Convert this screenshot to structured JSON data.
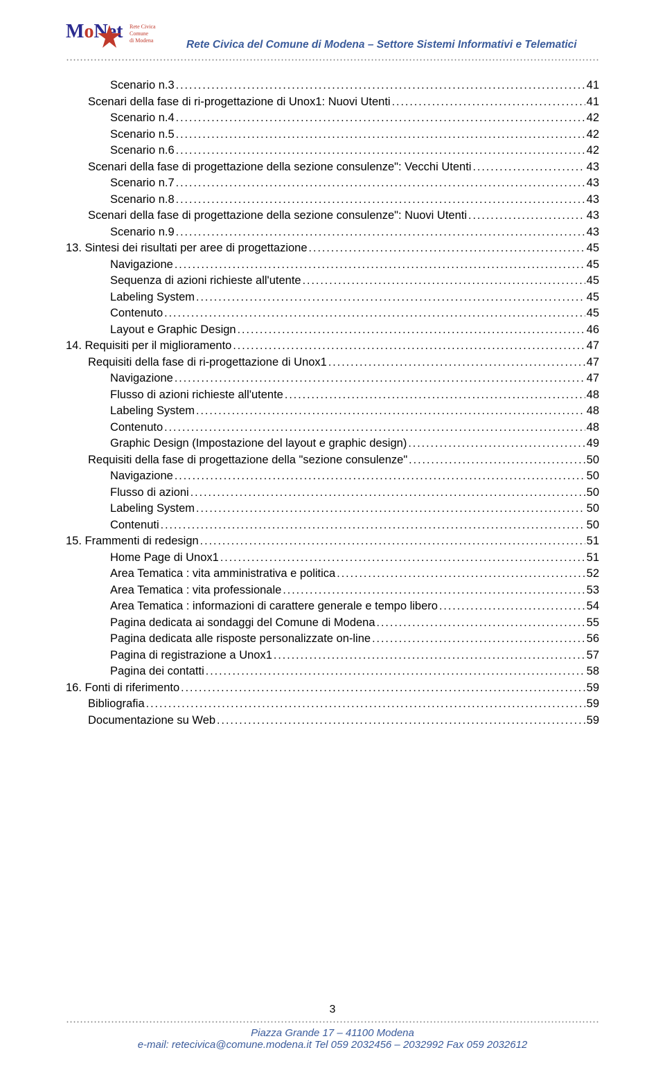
{
  "colors": {
    "brand_blue": "#3a5b9b",
    "logo_navy": "#2b2b8f",
    "logo_red": "#c0392b",
    "text_black": "#000000",
    "background": "#ffffff",
    "leader_dot": "#888888"
  },
  "typography": {
    "body_family": "Arial",
    "body_size_pt": 12,
    "header_size_pt": 11.5,
    "header_weight": "bold",
    "header_style": "italic"
  },
  "header": {
    "logo_text": "MoNet",
    "logo_tagline1": "Rete Civica",
    "logo_tagline2": "Comune",
    "logo_tagline3": "di Modena",
    "title": "Rete Civica del Comune di Modena – Settore Sistemi Informativi e Telematici"
  },
  "toc": [
    {
      "indent": 2,
      "label": "Scenario n.3",
      "page": 41
    },
    {
      "indent": 1,
      "label": "Scenari della fase di ri-progettazione di Unox1: Nuovi Utenti",
      "page": 41
    },
    {
      "indent": 2,
      "label": "Scenario n.4",
      "page": 42
    },
    {
      "indent": 2,
      "label": "Scenario n.5",
      "page": 42
    },
    {
      "indent": 2,
      "label": "Scenario n.6",
      "page": 42
    },
    {
      "indent": 1,
      "label": "Scenari della fase di progettazione della sezione consulenze\": Vecchi Utenti",
      "page": 43
    },
    {
      "indent": 2,
      "label": "Scenario n.7",
      "page": 43
    },
    {
      "indent": 2,
      "label": "Scenario n.8",
      "page": 43
    },
    {
      "indent": 1,
      "label": "Scenari della fase di progettazione della sezione consulenze\": Nuovi Utenti",
      "page": 43
    },
    {
      "indent": 2,
      "label": "Scenario n.9",
      "page": 43
    },
    {
      "indent": 0,
      "label": "13. Sintesi dei risultati per aree di progettazione",
      "page": 45
    },
    {
      "indent": 2,
      "label": "Navigazione",
      "page": 45
    },
    {
      "indent": 2,
      "label": "Sequenza di azioni richieste all'utente",
      "page": 45
    },
    {
      "indent": 2,
      "label": "Labeling System",
      "page": 45
    },
    {
      "indent": 2,
      "label": "Contenuto",
      "page": 45
    },
    {
      "indent": 2,
      "label": "Layout e Graphic Design",
      "page": 46
    },
    {
      "indent": 0,
      "label": "14. Requisiti per il miglioramento",
      "page": 47
    },
    {
      "indent": 1,
      "label": "Requisiti della fase di ri-progettazione di Unox1",
      "page": 47
    },
    {
      "indent": 2,
      "label": "Navigazione",
      "page": 47
    },
    {
      "indent": 2,
      "label": "Flusso di azioni richieste all'utente",
      "page": 48
    },
    {
      "indent": 2,
      "label": "Labeling System",
      "page": 48
    },
    {
      "indent": 2,
      "label": "Contenuto",
      "page": 48
    },
    {
      "indent": 2,
      "label": "Graphic Design (Impostazione del layout e graphic design)",
      "page": 49
    },
    {
      "indent": 1,
      "label": "Requisiti della fase di progettazione della \"sezione consulenze\" ",
      "page": 50
    },
    {
      "indent": 2,
      "label": "Navigazione",
      "page": 50
    },
    {
      "indent": 2,
      "label": "Flusso di azioni",
      "page": 50
    },
    {
      "indent": 2,
      "label": "Labeling System",
      "page": 50
    },
    {
      "indent": 2,
      "label": "Contenuti",
      "page": 50
    },
    {
      "indent": 0,
      "label": "15. Frammenti di redesign",
      "page": 51
    },
    {
      "indent": 2,
      "label": "Home Page di Unox1",
      "page": 51
    },
    {
      "indent": 2,
      "label": "Area Tematica : vita amministrativa e politica",
      "page": 52
    },
    {
      "indent": 2,
      "label": "Area Tematica : vita professionale",
      "page": 53
    },
    {
      "indent": 2,
      "label": "Area Tematica : informazioni di carattere generale e tempo libero",
      "page": 54
    },
    {
      "indent": 2,
      "label": "Pagina dedicata ai sondaggi del Comune di Modena",
      "page": 55
    },
    {
      "indent": 2,
      "label": "Pagina dedicata alle risposte personalizzate on-line",
      "page": 56
    },
    {
      "indent": 2,
      "label": "Pagina di registrazione a Unox1",
      "page": 57
    },
    {
      "indent": 2,
      "label": "Pagina dei contatti",
      "page": 58
    },
    {
      "indent": 0,
      "label": "16. Fonti di riferimento",
      "page": 59
    },
    {
      "indent": 1,
      "label": "Bibliografia",
      "page": 59
    },
    {
      "indent": 1,
      "label": "Documentazione su Web",
      "page": 59
    }
  ],
  "footer": {
    "page_number": "3",
    "line1": "Piazza Grande 17 – 41100 Modena",
    "line2": "e-mail: retecivica@comune.modena.it  Tel 059 2032456 – 2032992 Fax 059 2032612"
  }
}
